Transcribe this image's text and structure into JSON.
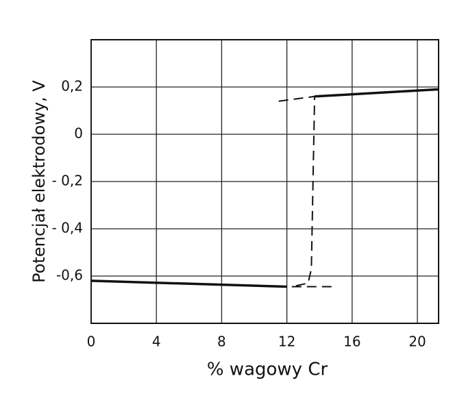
{
  "chart_data": {
    "type": "line",
    "xlabel": "% wagowy Cr",
    "ylabel": "Potencjał elektrodowy, V",
    "xlim": [
      0,
      21.3
    ],
    "ylim": [
      -0.8,
      0.4
    ],
    "xticks": [
      0,
      4,
      8,
      12,
      16,
      20
    ],
    "yticks": [
      {
        "value": 0.2,
        "label": "0,2"
      },
      0,
      {
        "value": -0.2,
        "label": "- 0,2"
      },
      {
        "value": -0.4,
        "label": "- 0,4"
      },
      {
        "value": -0.6,
        "label": "-0,6"
      }
    ],
    "grid": true,
    "series": [
      {
        "color": "#111",
        "dashed": false,
        "x": [
          0,
          12
        ],
        "values": [
          -0.62,
          -0.645
        ]
      },
      {
        "color": "#111",
        "dashed": false,
        "x": [
          13.7,
          21.3
        ],
        "values": [
          0.16,
          0.19
        ]
      },
      {
        "color": "#111",
        "dashed": true,
        "x": [
          11.5,
          13.7,
          13.5,
          13.3,
          12.3
        ],
        "values": [
          0.14,
          0.16,
          -0.57,
          -0.63,
          -0.645
        ]
      },
      {
        "color": "#111",
        "dashed": true,
        "x": [
          12.3,
          15
        ],
        "values": [
          -0.645,
          -0.645
        ]
      }
    ]
  }
}
